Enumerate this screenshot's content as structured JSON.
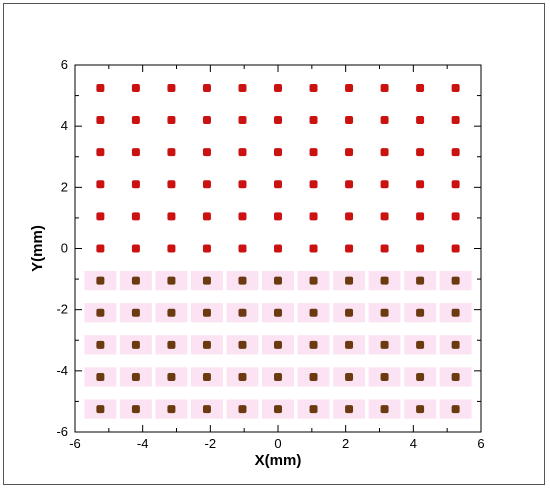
{
  "chart_data": {
    "type": "scatter",
    "title": "",
    "xlabel": "X(mm)",
    "ylabel": "Y(mm)",
    "xlim": [
      -6,
      6
    ],
    "ylim": [
      -6,
      6
    ],
    "xticks": [
      -6,
      -4,
      -2,
      0,
      2,
      4,
      6
    ],
    "yticks": [
      -6,
      -4,
      -2,
      0,
      2,
      4,
      6
    ],
    "xtick_labels": [
      "-6",
      "-4",
      "-2",
      "0",
      "2",
      "4",
      "6"
    ],
    "ytick_labels": [
      "-6",
      "-4",
      "-2",
      "0",
      "2",
      "4",
      "6"
    ],
    "grid": false,
    "legend": "none",
    "x": [
      -5.25,
      -4.2,
      -3.15,
      -2.1,
      -1.05,
      0,
      1.05,
      2.1,
      3.15,
      4.2,
      5.25
    ],
    "series": [
      {
        "y": [
          5.25,
          4.2,
          3.15,
          2.1,
          1.05,
          0
        ],
        "color": "#cc1111"
      },
      {
        "y": [
          -1.05,
          -2.1,
          -3.15,
          -4.2,
          -5.25
        ],
        "color": "#6b3a10",
        "halo_color": "#fce3f3"
      }
    ]
  }
}
